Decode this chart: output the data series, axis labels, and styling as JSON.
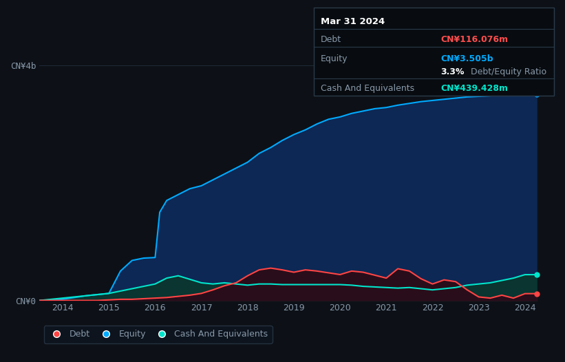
{
  "bg_color": "#0d1117",
  "plot_bg_color": "#0d1117",
  "title_box": {
    "date": "Mar 31 2024",
    "debt_label": "Debt",
    "debt_value": "CN¥116.076m",
    "debt_color": "#ff4d4d",
    "equity_label": "Equity",
    "equity_value": "CN¥3.505b",
    "equity_color": "#00aaff",
    "ratio_value": "3.3%",
    "ratio_label": " Debt/Equity Ratio",
    "cash_label": "Cash And Equivalents",
    "cash_value": "CN¥439.428m",
    "cash_color": "#00e5cc"
  },
  "y_label_top": "CN¥4b",
  "y_label_bottom": "CN¥0",
  "x_ticks": [
    2014,
    2015,
    2016,
    2017,
    2018,
    2019,
    2020,
    2021,
    2022,
    2023,
    2024
  ],
  "equity_color": "#00aaff",
  "debt_color": "#ff4444",
  "cash_color": "#00e5cc",
  "equity_data_x": [
    2013.5,
    2013.75,
    2014.0,
    2014.25,
    2014.5,
    2014.75,
    2015.0,
    2015.25,
    2015.5,
    2015.75,
    2016.0,
    2016.1,
    2016.25,
    2016.5,
    2016.75,
    2017.0,
    2017.25,
    2017.5,
    2017.75,
    2018.0,
    2018.25,
    2018.5,
    2018.75,
    2019.0,
    2019.25,
    2019.5,
    2019.75,
    2020.0,
    2020.25,
    2020.5,
    2020.75,
    2021.0,
    2021.25,
    2021.5,
    2021.75,
    2022.0,
    2022.25,
    2022.5,
    2022.75,
    2023.0,
    2023.25,
    2023.5,
    2023.75,
    2024.0,
    2024.25
  ],
  "equity_data_y": [
    0.0,
    0.01,
    0.02,
    0.05,
    0.08,
    0.1,
    0.12,
    0.5,
    0.68,
    0.72,
    0.73,
    1.5,
    1.7,
    1.8,
    1.9,
    1.95,
    2.05,
    2.15,
    2.25,
    2.35,
    2.5,
    2.6,
    2.72,
    2.82,
    2.9,
    3.0,
    3.08,
    3.12,
    3.18,
    3.22,
    3.26,
    3.28,
    3.32,
    3.35,
    3.38,
    3.4,
    3.42,
    3.44,
    3.46,
    3.47,
    3.48,
    3.5,
    3.51,
    3.505,
    3.505
  ],
  "debt_data_x": [
    2013.5,
    2013.75,
    2014.0,
    2014.25,
    2014.5,
    2014.75,
    2015.0,
    2015.25,
    2015.5,
    2015.75,
    2016.0,
    2016.25,
    2016.5,
    2016.75,
    2017.0,
    2017.25,
    2017.5,
    2017.75,
    2018.0,
    2018.25,
    2018.5,
    2018.75,
    2019.0,
    2019.25,
    2019.5,
    2019.75,
    2020.0,
    2020.25,
    2020.5,
    2020.75,
    2021.0,
    2021.25,
    2021.5,
    2021.75,
    2022.0,
    2022.25,
    2022.5,
    2022.75,
    2023.0,
    2023.25,
    2023.5,
    2023.75,
    2024.0,
    2024.25
  ],
  "debt_data_y": [
    0.0,
    0.0,
    0.0,
    0.0,
    0.0,
    0.0,
    0.01,
    0.02,
    0.02,
    0.03,
    0.04,
    0.05,
    0.07,
    0.09,
    0.12,
    0.18,
    0.25,
    0.3,
    0.42,
    0.52,
    0.55,
    0.52,
    0.48,
    0.52,
    0.5,
    0.47,
    0.44,
    0.5,
    0.48,
    0.43,
    0.38,
    0.54,
    0.5,
    0.37,
    0.28,
    0.35,
    0.32,
    0.18,
    0.06,
    0.04,
    0.09,
    0.04,
    0.116,
    0.116
  ],
  "cash_data_x": [
    2013.5,
    2013.75,
    2014.0,
    2014.25,
    2014.5,
    2014.75,
    2015.0,
    2015.25,
    2015.5,
    2015.75,
    2016.0,
    2016.25,
    2016.5,
    2016.75,
    2017.0,
    2017.25,
    2017.5,
    2017.75,
    2018.0,
    2018.25,
    2018.5,
    2018.75,
    2019.0,
    2019.25,
    2019.5,
    2019.75,
    2020.0,
    2020.25,
    2020.5,
    2020.75,
    2021.0,
    2021.25,
    2021.5,
    2021.75,
    2022.0,
    2022.25,
    2022.5,
    2022.75,
    2023.0,
    2023.25,
    2023.5,
    2023.75,
    2024.0,
    2024.25
  ],
  "cash_data_y": [
    0.0,
    0.02,
    0.04,
    0.06,
    0.08,
    0.1,
    0.12,
    0.16,
    0.2,
    0.24,
    0.28,
    0.38,
    0.42,
    0.36,
    0.3,
    0.28,
    0.3,
    0.28,
    0.26,
    0.28,
    0.28,
    0.27,
    0.27,
    0.27,
    0.27,
    0.27,
    0.27,
    0.26,
    0.24,
    0.23,
    0.22,
    0.21,
    0.22,
    0.2,
    0.18,
    0.2,
    0.22,
    0.26,
    0.28,
    0.3,
    0.34,
    0.38,
    0.439,
    0.439
  ],
  "legend_items": [
    {
      "label": "Debt",
      "color": "#ff4444"
    },
    {
      "label": "Equity",
      "color": "#00aaff"
    },
    {
      "label": "Cash And Equivalents",
      "color": "#00e5cc"
    }
  ],
  "grid_color": "#1e2a3a",
  "text_color": "#8899aa",
  "label_color": "#ffffff",
  "ylim": [
    0,
    4.0
  ],
  "xlim": [
    2013.5,
    2024.5
  ]
}
